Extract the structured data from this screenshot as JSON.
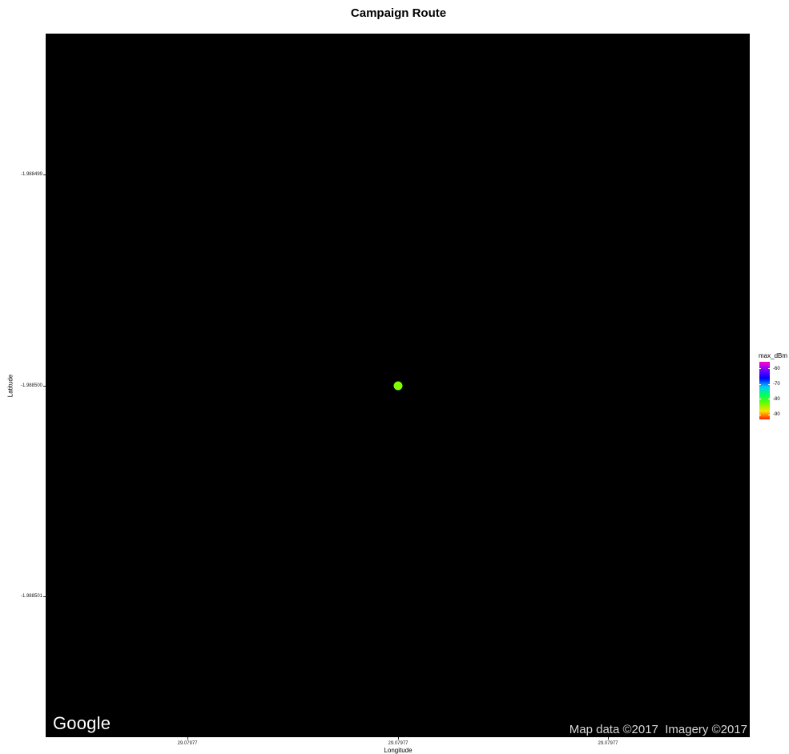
{
  "title": "Campaign Route",
  "map": {
    "background": "#000000",
    "logo_text": "Google",
    "attribution": "Map data ©2017  Imagery ©2017"
  },
  "axes": {
    "xlabel": "Longitude",
    "ylabel": "Latitude",
    "xticks": [
      "29.07977",
      "29.07977",
      "29.07977"
    ],
    "yticks": [
      "-1.988499",
      "-1.988500",
      "-1.988501"
    ]
  },
  "legend": {
    "title": "max_dBm",
    "ticks": [
      "-60",
      "-70",
      "-80",
      "-90"
    ],
    "colors": [
      "#ff00cc",
      "#7a00ff",
      "#0000ff",
      "#00c8ff",
      "#00ff60",
      "#60ff00",
      "#ffe000",
      "#ff2000"
    ]
  },
  "chart_data": {
    "type": "scatter",
    "title": "Campaign Route",
    "xlabel": "Longitude",
    "ylabel": "Latitude",
    "points": [
      {
        "x": 29.07977,
        "y": -1.9885,
        "max_dBm": -81,
        "color": "#7cff00"
      }
    ],
    "ylim": [
      -1.9885015,
      -1.9884985
    ],
    "color_scale": {
      "title": "max_dBm",
      "range": [
        -93,
        -57
      ]
    },
    "grid": false,
    "legend_position": "right"
  }
}
